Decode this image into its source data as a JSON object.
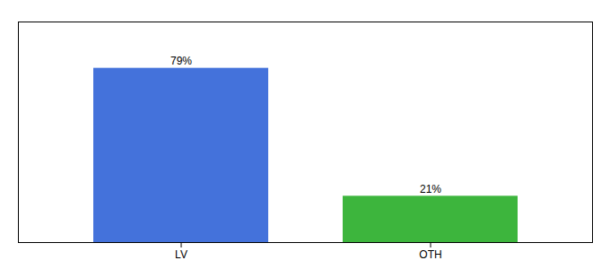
{
  "chart_data": {
    "type": "bar",
    "categories": [
      "LV",
      "OTH"
    ],
    "values": [
      79,
      21
    ],
    "value_labels": [
      "79%",
      "21%"
    ],
    "colors": [
      "#4472db",
      "#3db53d"
    ],
    "ylim": [
      0,
      100
    ],
    "data_labels": true,
    "tick_labels": "x",
    "grid": false
  }
}
